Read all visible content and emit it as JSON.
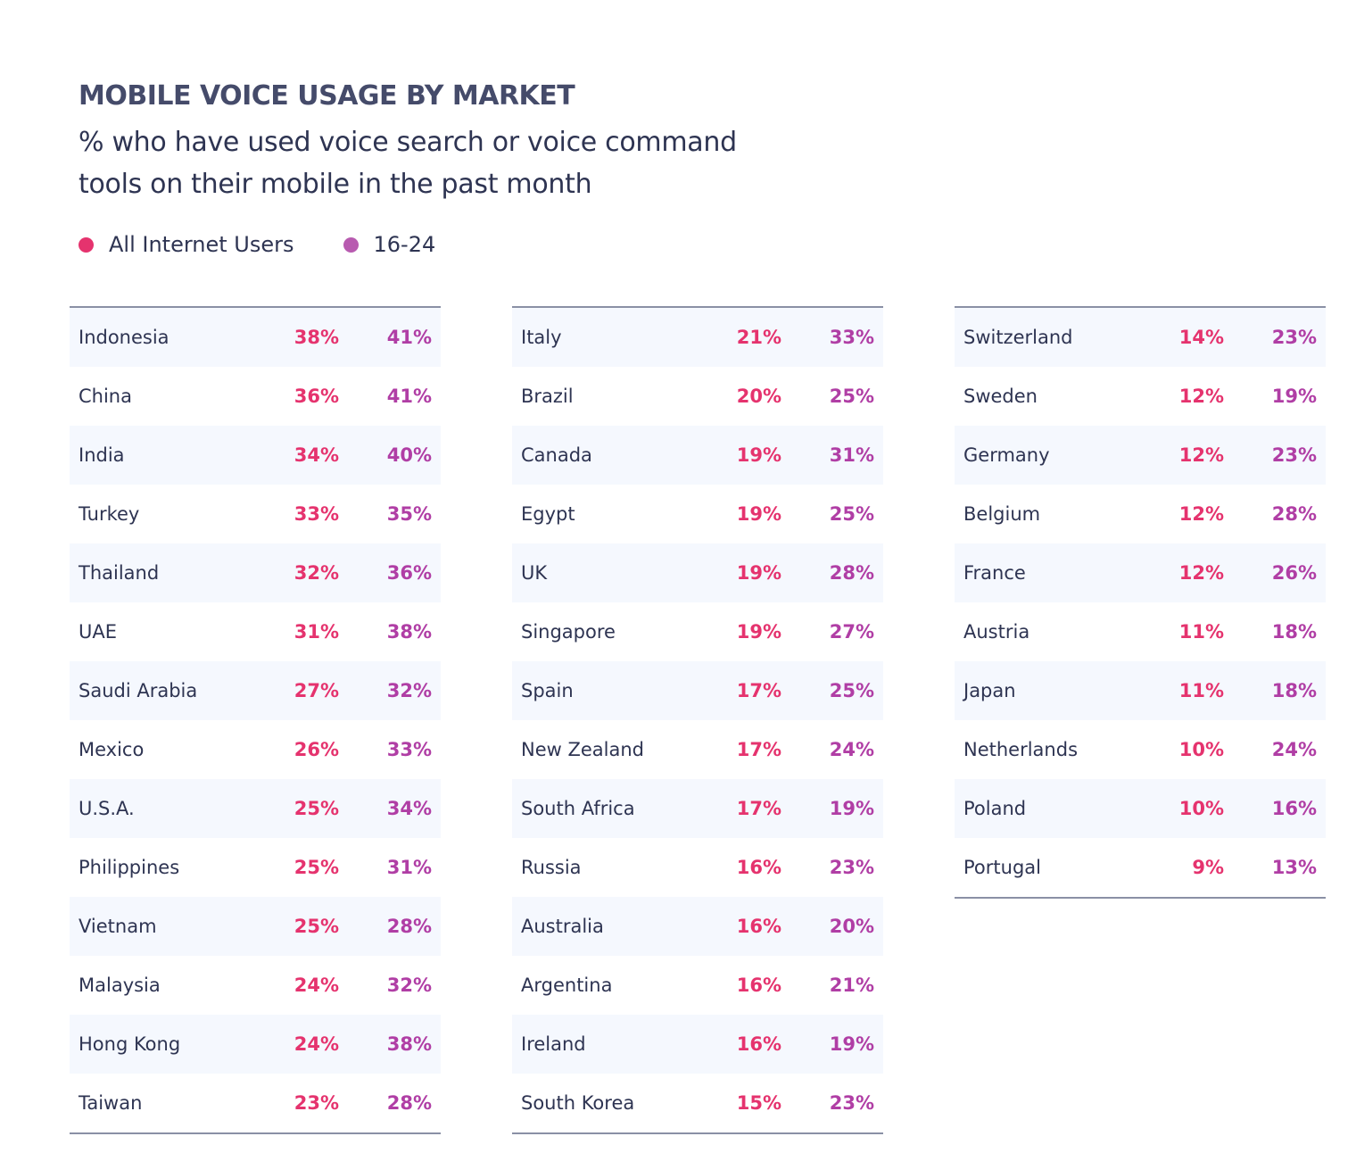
{
  "chart_data": {
    "type": "table",
    "title": "MOBILE VOICE USAGE BY MARKET",
    "subtitle": "% who have used voice search or voice command tools on their mobile in the past month",
    "legend": [
      {
        "name": "All Internet Users",
        "color": "#e5336e"
      },
      {
        "name": "16-24",
        "color": "#b85bb0"
      }
    ],
    "columns": [
      [
        [
          "Indonesia",
          "38%",
          "41%"
        ],
        [
          "China",
          "36%",
          "41%"
        ],
        [
          "India",
          "34%",
          "40%"
        ],
        [
          "Turkey",
          "33%",
          "35%"
        ],
        [
          "Thailand",
          "32%",
          "36%"
        ],
        [
          "UAE",
          "31%",
          "38%"
        ],
        [
          "Saudi Arabia",
          "27%",
          "32%"
        ],
        [
          "Mexico",
          "26%",
          "33%"
        ],
        [
          "U.S.A.",
          "25%",
          "34%"
        ],
        [
          "Philippines",
          "25%",
          "31%"
        ],
        [
          "Vietnam",
          "25%",
          "28%"
        ],
        [
          "Malaysia",
          "24%",
          "32%"
        ],
        [
          "Hong Kong",
          "24%",
          "38%"
        ],
        [
          "Taiwan",
          "23%",
          "28%"
        ]
      ],
      [
        [
          "Italy",
          "21%",
          "33%"
        ],
        [
          "Brazil",
          "20%",
          "25%"
        ],
        [
          "Canada",
          "19%",
          "31%"
        ],
        [
          "Egypt",
          "19%",
          "25%"
        ],
        [
          "UK",
          "19%",
          "28%"
        ],
        [
          "Singapore",
          "19%",
          "27%"
        ],
        [
          "Spain",
          "17%",
          "25%"
        ],
        [
          "New Zealand",
          "17%",
          "24%"
        ],
        [
          "South Africa",
          "17%",
          "19%"
        ],
        [
          "Russia",
          "16%",
          "23%"
        ],
        [
          "Australia",
          "16%",
          "20%"
        ],
        [
          "Argentina",
          "16%",
          "21%"
        ],
        [
          "Ireland",
          "16%",
          "19%"
        ],
        [
          "South Korea",
          "15%",
          "23%"
        ]
      ],
      [
        [
          "Switzerland",
          "14%",
          "23%"
        ],
        [
          "Sweden",
          "12%",
          "19%"
        ],
        [
          "Germany",
          "12%",
          "23%"
        ],
        [
          "Belgium",
          "12%",
          "28%"
        ],
        [
          "France",
          "12%",
          "26%"
        ],
        [
          "Austria",
          "11%",
          "18%"
        ],
        [
          "Japan",
          "11%",
          "18%"
        ],
        [
          "Netherlands",
          "10%",
          "24%"
        ],
        [
          "Poland",
          "10%",
          "16%"
        ],
        [
          "Portugal",
          "9%",
          "13%"
        ]
      ]
    ]
  }
}
